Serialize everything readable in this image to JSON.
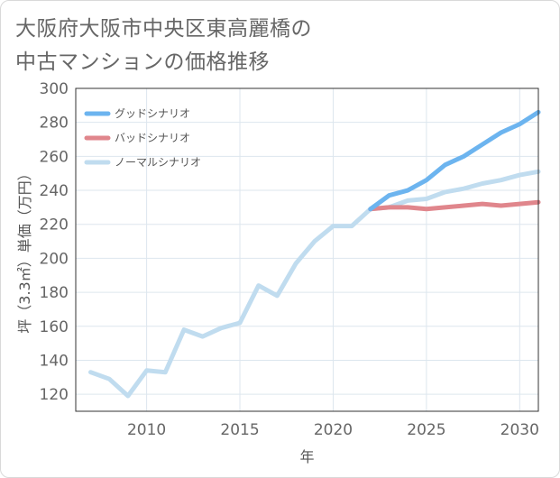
{
  "title_lines": [
    "大阪府大阪市中央区東高麗橋の",
    "中古マンションの価格推移"
  ],
  "chart_data": {
    "type": "line",
    "xlabel": "年",
    "ylabel": "坪（3.3㎡）単価（万円）",
    "xlim": [
      2006.2,
      2031
    ],
    "ylim": [
      110,
      300
    ],
    "xticks": [
      2010,
      2015,
      2020,
      2025,
      2030
    ],
    "yticks": [
      120,
      140,
      160,
      180,
      200,
      220,
      240,
      260,
      280,
      300
    ],
    "grid": true,
    "legend_position": "top-left",
    "series": [
      {
        "name": "グッドシナリオ",
        "color": "#6cb4ef",
        "x": [
          2022,
          2023,
          2024,
          2025,
          2026,
          2027,
          2028,
          2029,
          2030,
          2031
        ],
        "y": [
          229,
          237,
          240,
          246,
          255,
          260,
          267,
          274,
          279,
          286
        ]
      },
      {
        "name": "バッドシナリオ",
        "color": "#e0868c",
        "x": [
          2022,
          2023,
          2024,
          2025,
          2026,
          2027,
          2028,
          2029,
          2030,
          2031
        ],
        "y": [
          229,
          230,
          230,
          229,
          230,
          231,
          232,
          231,
          232,
          233
        ]
      },
      {
        "name": "ノーマルシナリオ",
        "color": "#c0dcef",
        "x": [
          2007,
          2008,
          2009,
          2010,
          2011,
          2012,
          2013,
          2014,
          2015,
          2016,
          2017,
          2018,
          2019,
          2020,
          2021,
          2022,
          2023,
          2024,
          2025,
          2026,
          2027,
          2028,
          2029,
          2030,
          2031
        ],
        "y": [
          133,
          129,
          119,
          134,
          133,
          158,
          154,
          159,
          162,
          184,
          178,
          197,
          210,
          219,
          219,
          229,
          230,
          234,
          235,
          239,
          241,
          244,
          246,
          249,
          251
        ]
      }
    ]
  }
}
